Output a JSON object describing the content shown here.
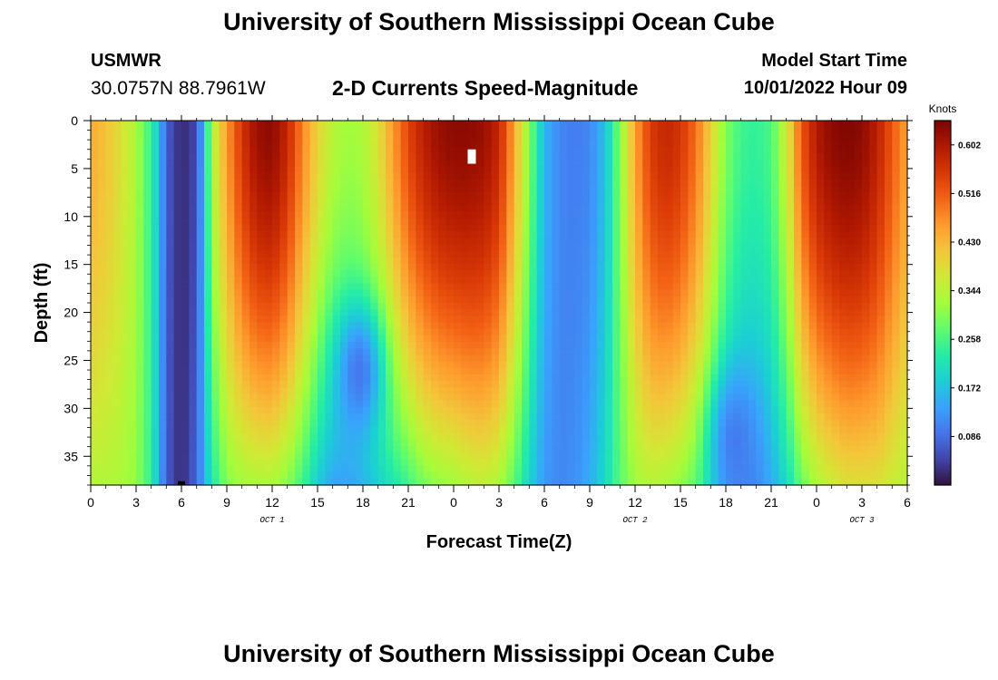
{
  "page": {
    "title_top": "University of Southern Mississippi Ocean Cube",
    "title_bottom": "University of Southern Mississippi Ocean Cube",
    "station_name": "USMWR",
    "station_coords": "30.0757N  88.7961W",
    "plot_title": "2-D Currents Speed-Magnitude",
    "model_start_label": "Model Start Time",
    "model_start_value": "10/01/2022 Hour 09"
  },
  "chart_data": {
    "type": "heatmap",
    "title": "2-D Currents Speed-Magnitude",
    "xlabel": "Forecast Time(Z)",
    "ylabel": "Depth (ft)",
    "x_hour_range": [
      0,
      54
    ],
    "y_range": [
      0,
      38
    ],
    "x_tick_hours": [
      0,
      3,
      6,
      9,
      12,
      15,
      18,
      21,
      24,
      27,
      30,
      33,
      36,
      39,
      42,
      45,
      48,
      51,
      54
    ],
    "x_tick_labels": [
      "0",
      "3",
      "6",
      "9",
      "12",
      "15",
      "18",
      "21",
      "0",
      "3",
      "6",
      "9",
      "12",
      "15",
      "18",
      "21",
      "0",
      "3",
      "6"
    ],
    "date_labels": [
      {
        "text": "OCT 1",
        "hour": 12
      },
      {
        "text": "OCT 2",
        "hour": 36
      },
      {
        "text": "OCT 3",
        "hour": 51
      }
    ],
    "y_ticks": [
      0,
      5,
      10,
      15,
      20,
      25,
      30,
      35
    ],
    "y_tick_labels": [
      "0",
      "5",
      "10",
      "15",
      "20",
      "25",
      "30",
      "35"
    ],
    "colorbar": {
      "units": "Knots",
      "min": 0.0,
      "max": 0.645,
      "tick_values": [
        0.086,
        0.172,
        0.258,
        0.344,
        0.43,
        0.516,
        0.602
      ],
      "tick_labels": [
        "0.086",
        "0.172",
        "0.258",
        "0.344",
        "0.430",
        "0.516",
        "0.602"
      ],
      "colors": [
        "#30123b",
        "#4145ab",
        "#4675ed",
        "#39a2fc",
        "#1bcfd4",
        "#24eca6",
        "#61fc6c",
        "#a4fc3b",
        "#d1e834",
        "#f3c63a",
        "#fe9b2d",
        "#f36315",
        "#d93806",
        "#b11901",
        "#7a0402"
      ]
    },
    "surface_speed_by_hour": [
      [
        0,
        0.44
      ],
      [
        1,
        0.42
      ],
      [
        2,
        0.38
      ],
      [
        3,
        0.33
      ],
      [
        4,
        0.24
      ],
      [
        4.5,
        0.17
      ],
      [
        5,
        0.07
      ],
      [
        6,
        0.02
      ],
      [
        7,
        0.05
      ],
      [
        7.5,
        0.18
      ],
      [
        8,
        0.33
      ],
      [
        9,
        0.46
      ],
      [
        10,
        0.56
      ],
      [
        11,
        0.62
      ],
      [
        12,
        0.63
      ],
      [
        13,
        0.58
      ],
      [
        14,
        0.48
      ],
      [
        15,
        0.4
      ],
      [
        16,
        0.34
      ],
      [
        17,
        0.32
      ],
      [
        18,
        0.33
      ],
      [
        19,
        0.38
      ],
      [
        20,
        0.46
      ],
      [
        21,
        0.54
      ],
      [
        22,
        0.59
      ],
      [
        23,
        0.62
      ],
      [
        24,
        0.63
      ],
      [
        25,
        0.63
      ],
      [
        26,
        0.62
      ],
      [
        27,
        0.58
      ],
      [
        28,
        0.45
      ],
      [
        29,
        0.3
      ],
      [
        30,
        0.16
      ],
      [
        31,
        0.11
      ],
      [
        32,
        0.1
      ],
      [
        33,
        0.11
      ],
      [
        34,
        0.17
      ],
      [
        35,
        0.3
      ],
      [
        36,
        0.45
      ],
      [
        37,
        0.55
      ],
      [
        38,
        0.58
      ],
      [
        39,
        0.56
      ],
      [
        40,
        0.5
      ],
      [
        41,
        0.4
      ],
      [
        42,
        0.3
      ],
      [
        43,
        0.25
      ],
      [
        44,
        0.24
      ],
      [
        45,
        0.26
      ],
      [
        46,
        0.36
      ],
      [
        47,
        0.52
      ],
      [
        48,
        0.6
      ],
      [
        49,
        0.63
      ],
      [
        50,
        0.64
      ],
      [
        51,
        0.63
      ],
      [
        52,
        0.59
      ],
      [
        53,
        0.52
      ],
      [
        54,
        0.45
      ]
    ],
    "bottom_speed_by_hour": [
      [
        0,
        0.34
      ],
      [
        2,
        0.33
      ],
      [
        3,
        0.31
      ],
      [
        4,
        0.24
      ],
      [
        5,
        0.07
      ],
      [
        6,
        0.02
      ],
      [
        7,
        0.08
      ],
      [
        8,
        0.22
      ],
      [
        9,
        0.3
      ],
      [
        10,
        0.32
      ],
      [
        11,
        0.33
      ],
      [
        12,
        0.33
      ],
      [
        13,
        0.3
      ],
      [
        14,
        0.25
      ],
      [
        15,
        0.18
      ],
      [
        16,
        0.14
      ],
      [
        17,
        0.14
      ],
      [
        18,
        0.16
      ],
      [
        19,
        0.19
      ],
      [
        20,
        0.22
      ],
      [
        21,
        0.25
      ],
      [
        22,
        0.29
      ],
      [
        23,
        0.31
      ],
      [
        24,
        0.32
      ],
      [
        25,
        0.34
      ],
      [
        26,
        0.35
      ],
      [
        27,
        0.33
      ],
      [
        28,
        0.27
      ],
      [
        29,
        0.19
      ],
      [
        30,
        0.13
      ],
      [
        31,
        0.11
      ],
      [
        32,
        0.12
      ],
      [
        33,
        0.15
      ],
      [
        34,
        0.2
      ],
      [
        35,
        0.27
      ],
      [
        36,
        0.32
      ],
      [
        37,
        0.34
      ],
      [
        38,
        0.33
      ],
      [
        39,
        0.31
      ],
      [
        40,
        0.28
      ],
      [
        41,
        0.22
      ],
      [
        42,
        0.15
      ],
      [
        43,
        0.12
      ],
      [
        44,
        0.12
      ],
      [
        45,
        0.15
      ],
      [
        46,
        0.2
      ],
      [
        47,
        0.28
      ],
      [
        48,
        0.33
      ],
      [
        49,
        0.36
      ],
      [
        50,
        0.38
      ],
      [
        52,
        0.38
      ],
      [
        53,
        0.36
      ],
      [
        54,
        0.34
      ]
    ],
    "mid_depth_features": [
      {
        "name": "low-speed core",
        "hour": 17.8,
        "depth_ft": 26,
        "speed": 0.05
      },
      {
        "name": "low-speed core",
        "hour": 42.5,
        "depth_ft": 33,
        "speed": 0.08
      }
    ],
    "markers": [
      {
        "name": "white marker",
        "hour": 25.2,
        "depth_range": [
          3,
          4.5
        ],
        "color": "#ffffff"
      },
      {
        "name": "black marker",
        "hour": 6,
        "depth_range": [
          37.6,
          38
        ],
        "color": "#000000"
      }
    ]
  }
}
